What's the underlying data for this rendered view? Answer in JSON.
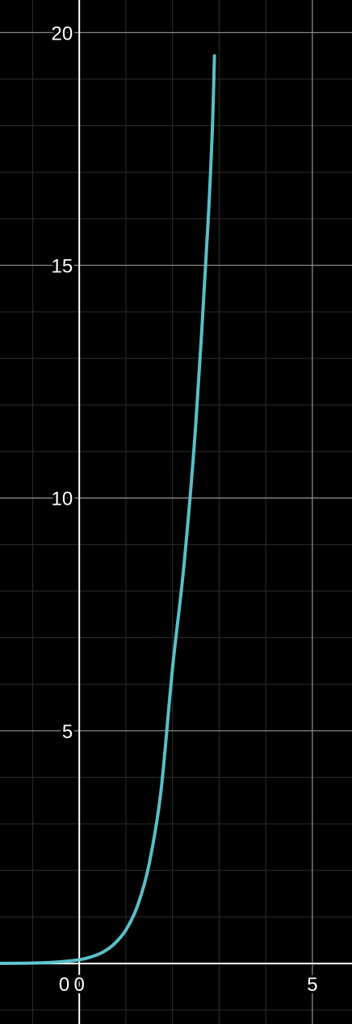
{
  "chart_data": {
    "type": "line",
    "title": "",
    "xlabel": "",
    "ylabel": "",
    "xlim": [
      -1.7,
      5.85
    ],
    "ylim": [
      -1.3,
      20.7
    ],
    "x_major_ticks": [
      0,
      5
    ],
    "y_major_ticks": [
      5,
      10,
      15,
      20
    ],
    "x_tick_labels": [
      "0",
      "5"
    ],
    "y_tick_labels": [
      "5",
      "10",
      "15",
      "20"
    ],
    "origin_label": "0",
    "minor_grid_step": 1,
    "grid": true,
    "legend": "none",
    "colors": {
      "background": "#000000",
      "axis": "#ffffff",
      "major_grid": "#8a8a8a",
      "minor_grid": "#2e2e2e",
      "series": "#5fc8d2"
    },
    "series": [
      {
        "x": [
          -1.7,
          -1.0,
          -0.5,
          0.0,
          0.25,
          0.5,
          0.75,
          1.0,
          1.25,
          1.5,
          1.75,
          2.0,
          2.25,
          2.5,
          2.75,
          2.85,
          2.9
        ],
        "y": [
          0.003,
          0.01,
          0.03,
          0.08,
          0.14,
          0.24,
          0.42,
          0.72,
          1.24,
          2.14,
          3.68,
          6.34,
          8.6,
          11.6,
          15.7,
          17.8,
          19.5
        ]
      }
    ]
  }
}
